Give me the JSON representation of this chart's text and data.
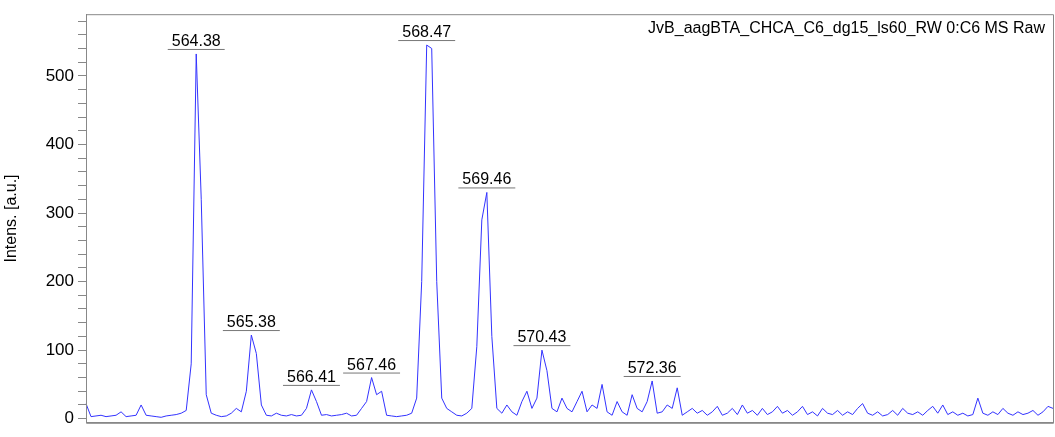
{
  "chart_data": {
    "type": "line",
    "title": "JvB_aagBTA_CHCA_C6_dg15_ls60_RW 0:C6 MS Raw",
    "ylabel": "Intens. [a.u.]",
    "categories": [
      null,
      null,
      null,
      null,
      null,
      null,
      null,
      null,
      null,
      null,
      null,
      null,
      null,
      null,
      null,
      null,
      null,
      null,
      null,
      null,
      null,
      null,
      null,
      null,
      null,
      null,
      null,
      null,
      null,
      null,
      null,
      null,
      null,
      null,
      null,
      null,
      null,
      null,
      null,
      null,
      null,
      null,
      null,
      null,
      null,
      null,
      null,
      null,
      null,
      null,
      null,
      null,
      null,
      null,
      null,
      null,
      null,
      null,
      null,
      null,
      null,
      null,
      null,
      null,
      null,
      null,
      null,
      null,
      null,
      null,
      null,
      null,
      null,
      null,
      null,
      null,
      null,
      null,
      null,
      null,
      null,
      null,
      null,
      null,
      null,
      null,
      null,
      null,
      null,
      null,
      null,
      null,
      null,
      null,
      null,
      null,
      null,
      null,
      null,
      null,
      null,
      null,
      null,
      null,
      null,
      null,
      null,
      null,
      null,
      null,
      null,
      null,
      null,
      null,
      null,
      null,
      null,
      null,
      null,
      null,
      null,
      null,
      null,
      null,
      null,
      null,
      null,
      null,
      null,
      null,
      null,
      null,
      null,
      null,
      null,
      null,
      null,
      null,
      null,
      null,
      null,
      null,
      null,
      null,
      null,
      null,
      null,
      null,
      null,
      null,
      null,
      null,
      null,
      null,
      null,
      null,
      null,
      null,
      null,
      null,
      null,
      null,
      null,
      null,
      null,
      null,
      null,
      null,
      null,
      null,
      null,
      null,
      null,
      null,
      null,
      null,
      null,
      null,
      null,
      null,
      null,
      null,
      null,
      null,
      null,
      null,
      null,
      null,
      null,
      null,
      null,
      null,
      null,
      null
    ],
    "series": [
      {
        "color": "#3333ff",
        "values": [
          22,
          3,
          4,
          5,
          3,
          4,
          5,
          10,
          3,
          4,
          5,
          20,
          5,
          4,
          3,
          2,
          4,
          5,
          6,
          8,
          12,
          80,
          532,
          320,
          35,
          8,
          5,
          3,
          4,
          8,
          15,
          10,
          40,
          122,
          95,
          20,
          5,
          4,
          8,
          5,
          4,
          6,
          4,
          5,
          15,
          42,
          25,
          5,
          6,
          4,
          5,
          6,
          8,
          4,
          5,
          15,
          25,
          60,
          35,
          40,
          5,
          4,
          3,
          4,
          5,
          8,
          30,
          200,
          545,
          540,
          200,
          30,
          15,
          10,
          5,
          4,
          8,
          15,
          105,
          290,
          330,
          120,
          15,
          8,
          20,
          10,
          5,
          25,
          40,
          15,
          30,
          100,
          70,
          15,
          10,
          30,
          15,
          10,
          25,
          40,
          10,
          20,
          15,
          50,
          10,
          5,
          25,
          10,
          5,
          35,
          15,
          10,
          25,
          55,
          8,
          10,
          20,
          15,
          45,
          5,
          10,
          15,
          8,
          12,
          5,
          10,
          18,
          5,
          8,
          15,
          6,
          20,
          8,
          12,
          5,
          15,
          6,
          10,
          18,
          8,
          12,
          5,
          10,
          18,
          6,
          10,
          4,
          15,
          8,
          6,
          12,
          5,
          10,
          6,
          15,
          22,
          8,
          5,
          10,
          4,
          6,
          12,
          5,
          15,
          8,
          6,
          10,
          5,
          12,
          18,
          8,
          20,
          6,
          10,
          5,
          8,
          4,
          6,
          30,
          8,
          5,
          10,
          6,
          15,
          8,
          5,
          10,
          6,
          8,
          12,
          5,
          10,
          18,
          15
        ]
      }
    ],
    "annotations": [
      {
        "text": "564.38",
        "y": 532
      },
      {
        "text": "565.38",
        "y": 122
      },
      {
        "text": "566.41",
        "y": 42
      },
      {
        "text": "567.46",
        "y": 60
      },
      {
        "text": "568.47",
        "y": 545
      },
      {
        "text": "569.46",
        "y": 330
      },
      {
        "text": "570.43",
        "y": 100
      },
      {
        "text": "572.36",
        "y": 55
      }
    ],
    "ylim": [
      -6,
      590
    ],
    "yticks": [
      0,
      {
        "value": 20,
        "label": null
      },
      {
        "value": 40,
        "label": null
      },
      {
        "value": 60,
        "label": null
      },
      {
        "value": 80,
        "label": null
      },
      100,
      {
        "value": 120,
        "label": null
      },
      {
        "value": 140,
        "label": null
      },
      {
        "value": 160,
        "label": null
      },
      {
        "value": 180,
        "label": null
      },
      200,
      {
        "value": 220,
        "label": null
      },
      {
        "value": 240,
        "label": null
      },
      {
        "value": 260,
        "label": null
      },
      {
        "value": 280,
        "label": null
      },
      300,
      {
        "value": 320,
        "label": null
      },
      {
        "value": 340,
        "label": null
      },
      {
        "value": 360,
        "label": null
      },
      {
        "value": 380,
        "label": null
      },
      400,
      {
        "value": 420,
        "label": null
      },
      {
        "value": 440,
        "label": null
      },
      {
        "value": 460,
        "label": null
      },
      {
        "value": 480,
        "label": null
      },
      500,
      {
        "value": 520,
        "label": null
      },
      {
        "value": 540,
        "label": null
      },
      {
        "value": 560,
        "label": null
      },
      {
        "value": 580,
        "label": null
      }
    ],
    "tick_labels": "y",
    "grid": false,
    "legend": false,
    "marker": "none",
    "line_style": "solid"
  }
}
